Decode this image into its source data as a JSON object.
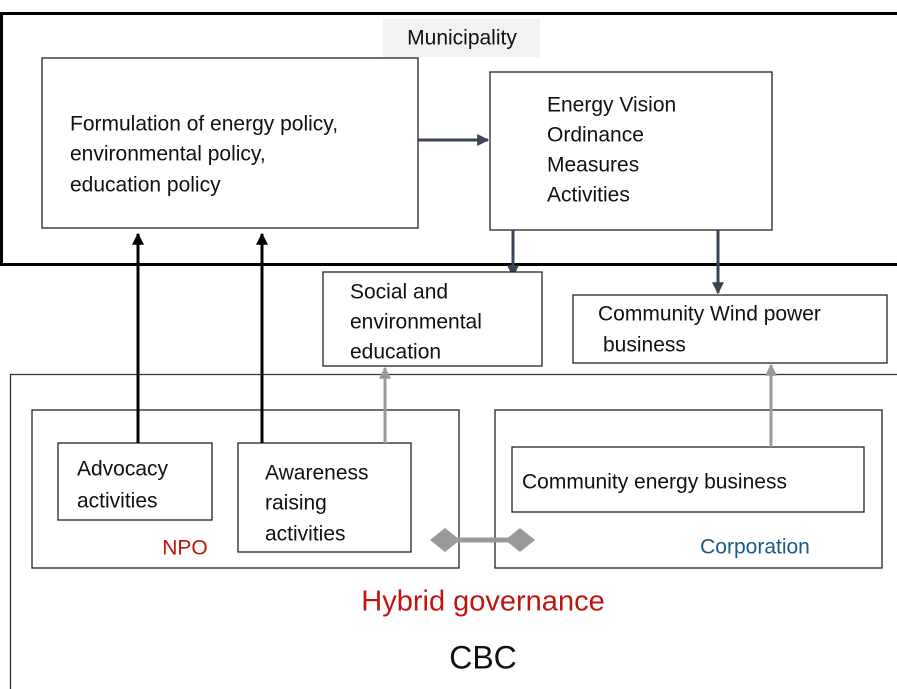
{
  "municipality": {
    "label": "Municipality",
    "policy_box": {
      "lines": [
        "Formulation of energy policy,",
        "environmental policy,",
        "education policy"
      ]
    },
    "vision_box": {
      "lines": [
        "Energy Vision",
        "Ordinance",
        "Measures",
        "Activities"
      ]
    }
  },
  "outcomes": {
    "education_box": {
      "lines": [
        "Social and",
        "environmental",
        "education"
      ]
    },
    "wind_box": {
      "lines": [
        "Community Wind power",
        "business"
      ]
    }
  },
  "cbc": {
    "label": "CBC",
    "governance_label": "Hybrid governance",
    "npo": {
      "label": "NPO",
      "advocacy": {
        "lines": [
          "Advocacy",
          "activities"
        ]
      },
      "awareness": {
        "lines": [
          "Awareness",
          "raising",
          "activities"
        ]
      }
    },
    "corporation": {
      "label": "Corporation",
      "business": {
        "lines": [
          "Community energy business"
        ]
      }
    }
  }
}
